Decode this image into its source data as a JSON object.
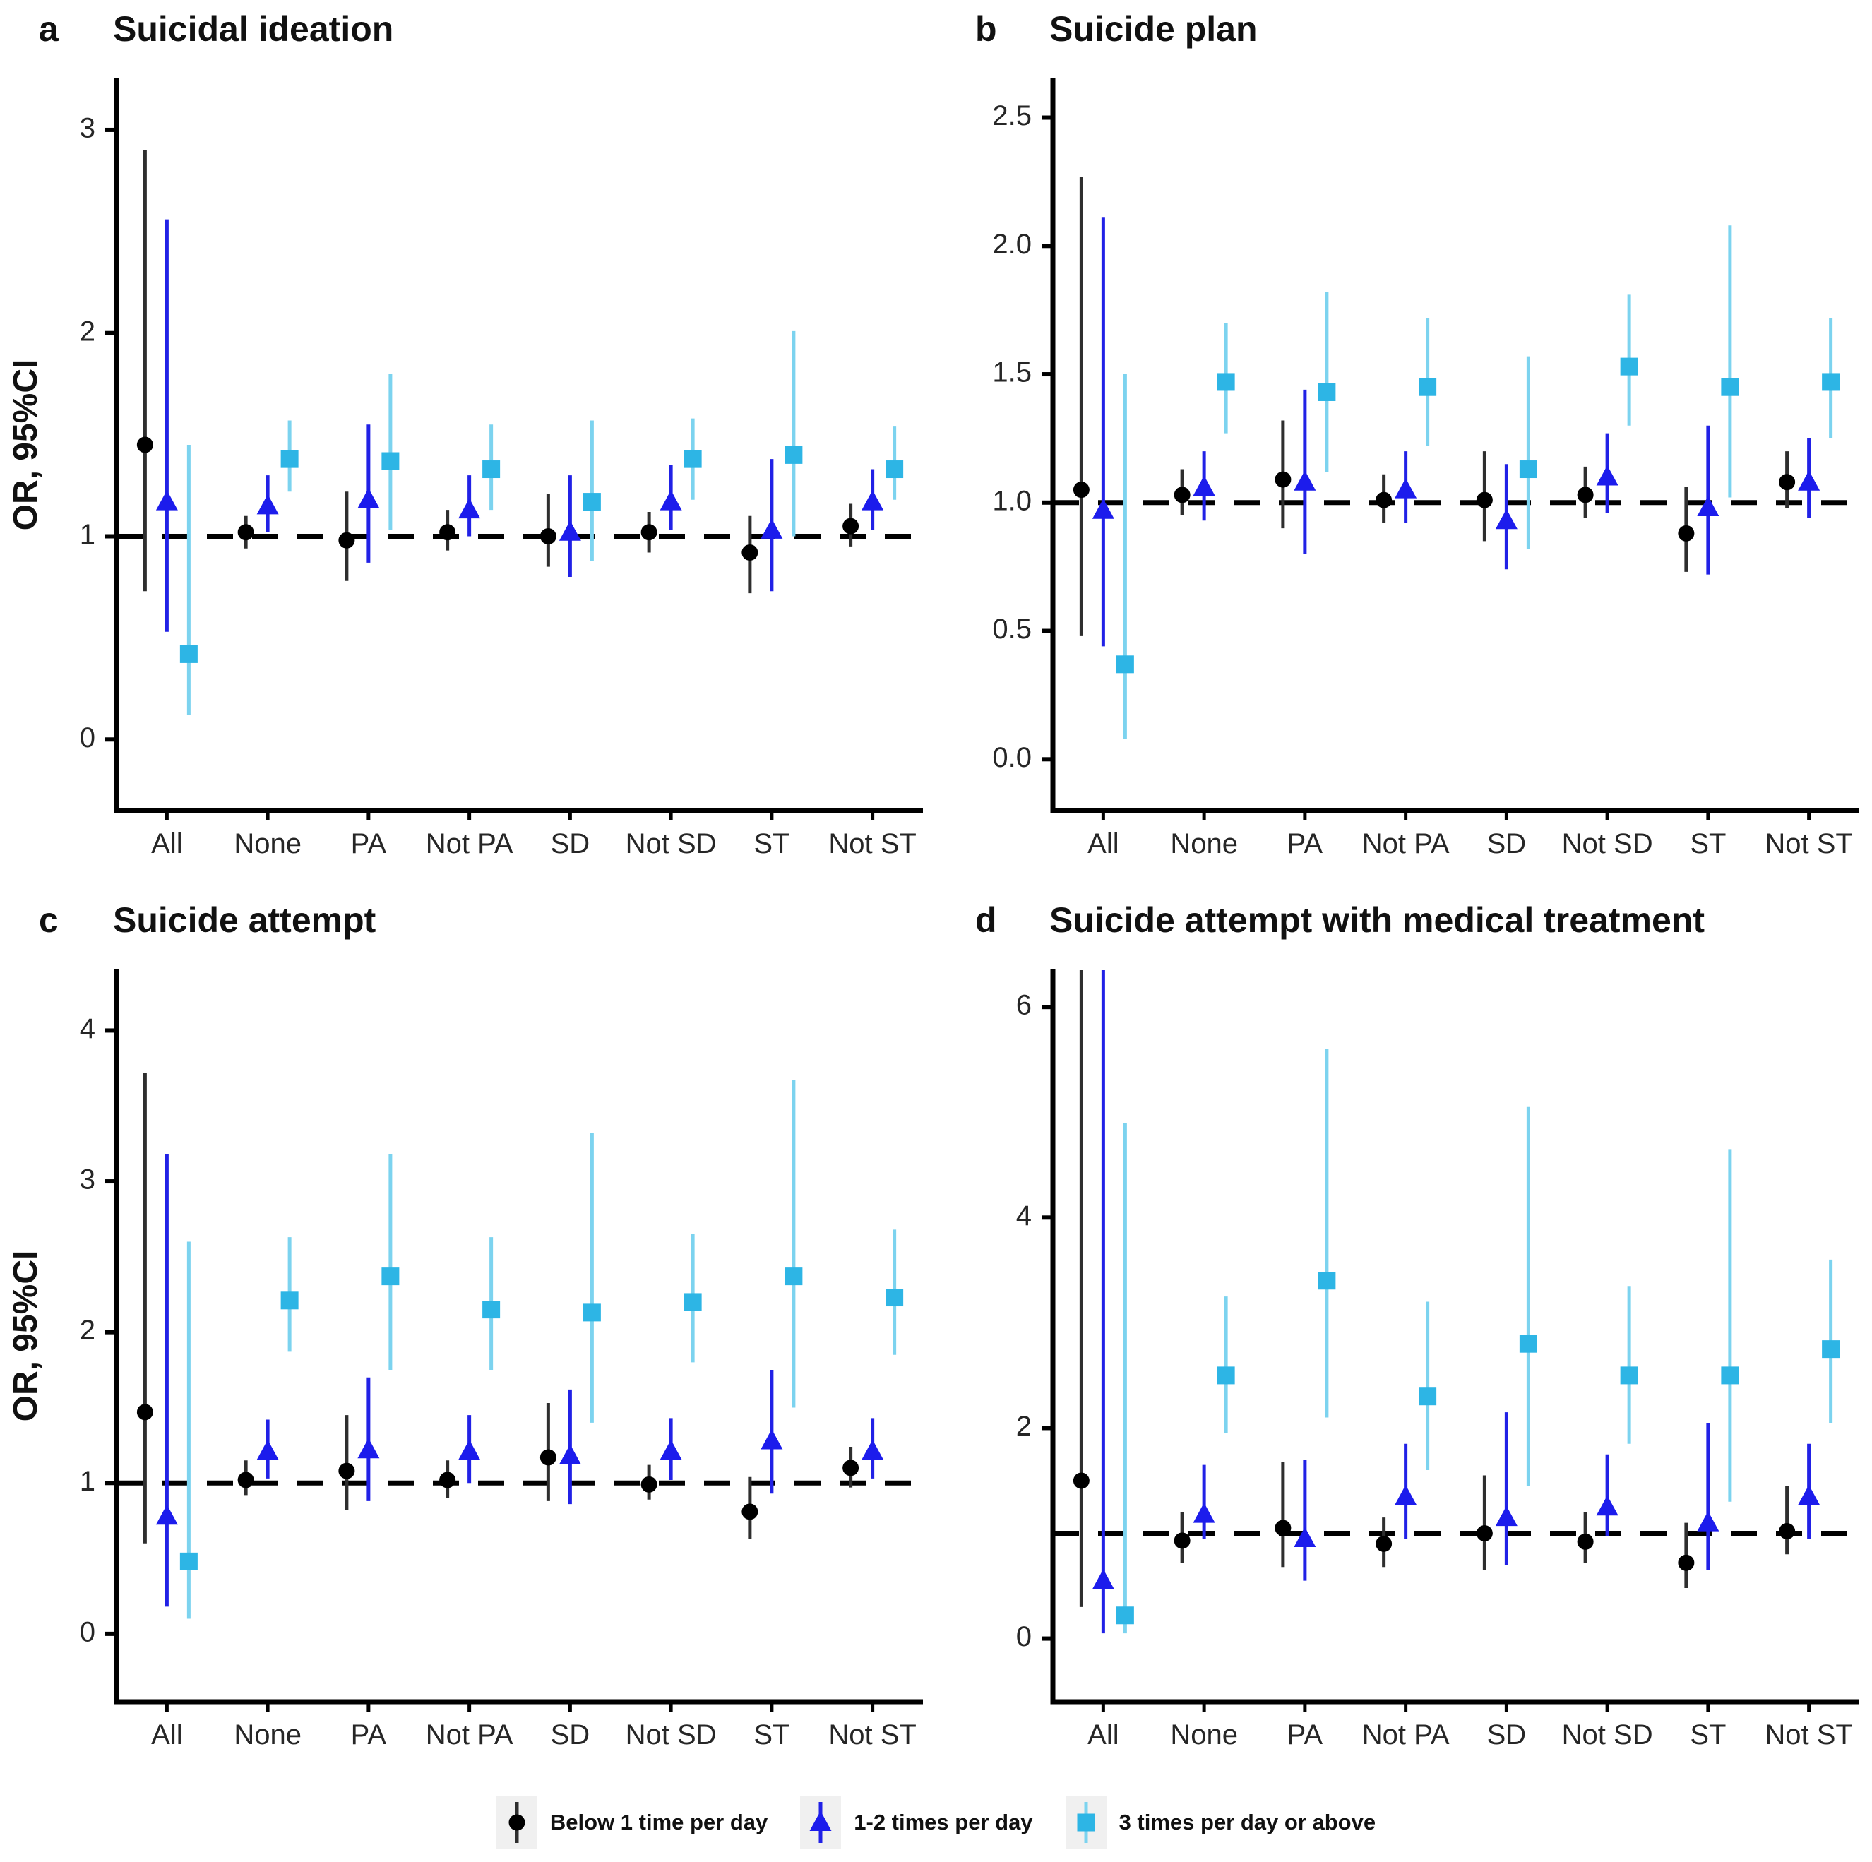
{
  "figure": {
    "ylabel": "OR, 95%CI",
    "background_color": "#ffffff",
    "reference_line_value": 1
  },
  "legend": {
    "items": [
      {
        "label": "Below 1 time per day",
        "marker": "circle",
        "marker_color": "#000000",
        "line_color": "#2e2e2e"
      },
      {
        "label": "1-2 times per day",
        "marker": "triangle",
        "marker_color": "#1c1cec",
        "line_color": "#2121e6"
      },
      {
        "label": "3 times per day or above",
        "marker": "square",
        "marker_color": "#2db5e5",
        "line_color": "#7cd3ef"
      }
    ]
  },
  "chart_data": [
    {
      "type": "pointrange",
      "panel_letter": "a",
      "title": "Suicidal ideation",
      "ylabel": "OR, 95%CI",
      "ylim": [
        -0.35,
        3.25
      ],
      "yticks": [
        0,
        1,
        2,
        3
      ],
      "ytick_labels": [
        "0",
        "1",
        "2",
        "3"
      ],
      "reference_line": 1,
      "categories": [
        "All",
        "None",
        "PA",
        "Not PA",
        "SD",
        "Not SD",
        "ST",
        "Not ST"
      ],
      "series": [
        {
          "name": "Below 1 time per day",
          "marker": "circle",
          "values": [
            1.45,
            1.02,
            0.98,
            1.02,
            1.0,
            1.02,
            0.92,
            1.05
          ],
          "lower": [
            0.73,
            0.94,
            0.78,
            0.93,
            0.85,
            0.92,
            0.72,
            0.95
          ],
          "upper": [
            2.9,
            1.1,
            1.22,
            1.13,
            1.21,
            1.12,
            1.1,
            1.16
          ]
        },
        {
          "name": "1-2 times per day",
          "marker": "triangle",
          "values": [
            1.17,
            1.15,
            1.18,
            1.13,
            1.02,
            1.17,
            1.03,
            1.17
          ],
          "lower": [
            0.53,
            1.02,
            0.87,
            1.0,
            0.8,
            1.03,
            0.73,
            1.03
          ],
          "upper": [
            2.56,
            1.3,
            1.55,
            1.3,
            1.3,
            1.35,
            1.38,
            1.33
          ]
        },
        {
          "name": "3 times per day or above",
          "marker": "square",
          "values": [
            0.42,
            1.38,
            1.37,
            1.33,
            1.17,
            1.38,
            1.4,
            1.33
          ],
          "lower": [
            0.12,
            1.22,
            1.03,
            1.13,
            0.88,
            1.18,
            1.0,
            1.18
          ],
          "upper": [
            1.45,
            1.57,
            1.8,
            1.55,
            1.57,
            1.58,
            2.01,
            1.54
          ]
        }
      ]
    },
    {
      "type": "pointrange",
      "panel_letter": "b",
      "title": "Suicide plan",
      "ylabel": "",
      "ylim": [
        -0.2,
        2.65
      ],
      "yticks": [
        0.0,
        0.5,
        1.0,
        1.5,
        2.0,
        2.5
      ],
      "ytick_labels": [
        "0.0",
        "0.5",
        "1.0",
        "1.5",
        "2.0",
        "2.5"
      ],
      "reference_line": 1,
      "categories": [
        "All",
        "None",
        "PA",
        "Not PA",
        "SD",
        "Not SD",
        "ST",
        "Not ST"
      ],
      "series": [
        {
          "name": "Below 1 time per day",
          "marker": "circle",
          "values": [
            1.05,
            1.03,
            1.09,
            1.01,
            1.01,
            1.03,
            0.88,
            1.08
          ],
          "lower": [
            0.48,
            0.95,
            0.9,
            0.92,
            0.85,
            0.94,
            0.73,
            0.98
          ],
          "upper": [
            2.27,
            1.13,
            1.32,
            1.11,
            1.2,
            1.14,
            1.06,
            1.2
          ]
        },
        {
          "name": "1-2 times per day",
          "marker": "triangle",
          "values": [
            0.97,
            1.06,
            1.08,
            1.05,
            0.93,
            1.1,
            0.98,
            1.08
          ],
          "lower": [
            0.44,
            0.93,
            0.8,
            0.92,
            0.74,
            0.96,
            0.72,
            0.94
          ],
          "upper": [
            2.11,
            1.2,
            1.44,
            1.2,
            1.15,
            1.27,
            1.3,
            1.25
          ]
        },
        {
          "name": "3 times per day or above",
          "marker": "square",
          "values": [
            0.37,
            1.47,
            1.43,
            1.45,
            1.13,
            1.53,
            1.45,
            1.47
          ],
          "lower": [
            0.08,
            1.27,
            1.12,
            1.22,
            0.82,
            1.3,
            1.02,
            1.25
          ],
          "upper": [
            1.5,
            1.7,
            1.82,
            1.72,
            1.57,
            1.81,
            2.08,
            1.72
          ]
        }
      ]
    },
    {
      "type": "pointrange",
      "panel_letter": "c",
      "title": "Suicide attempt",
      "ylabel": "OR, 95%CI",
      "ylim": [
        -0.45,
        4.4
      ],
      "yticks": [
        0,
        1,
        2,
        3,
        4
      ],
      "ytick_labels": [
        "0",
        "1",
        "2",
        "3",
        "4"
      ],
      "reference_line": 1,
      "categories": [
        "All",
        "None",
        "PA",
        "Not PA",
        "SD",
        "Not SD",
        "ST",
        "Not ST"
      ],
      "series": [
        {
          "name": "Below 1 time per day",
          "marker": "circle",
          "values": [
            1.47,
            1.02,
            1.08,
            1.02,
            1.17,
            0.99,
            0.81,
            1.1
          ],
          "lower": [
            0.6,
            0.92,
            0.82,
            0.9,
            0.88,
            0.89,
            0.63,
            0.97
          ],
          "upper": [
            3.72,
            1.15,
            1.45,
            1.15,
            1.53,
            1.12,
            1.04,
            1.24
          ]
        },
        {
          "name": "1-2 times per day",
          "marker": "triangle",
          "values": [
            0.78,
            1.21,
            1.22,
            1.21,
            1.18,
            1.21,
            1.28,
            1.21
          ],
          "lower": [
            0.18,
            1.03,
            0.88,
            1.0,
            0.86,
            1.02,
            0.93,
            1.03
          ],
          "upper": [
            3.18,
            1.42,
            1.7,
            1.45,
            1.62,
            1.43,
            1.75,
            1.43
          ]
        },
        {
          "name": "3 times per day or above",
          "marker": "square",
          "values": [
            0.48,
            2.21,
            2.37,
            2.15,
            2.13,
            2.2,
            2.37,
            2.23
          ],
          "lower": [
            0.1,
            1.87,
            1.75,
            1.75,
            1.4,
            1.8,
            1.5,
            1.85
          ],
          "upper": [
            2.6,
            2.63,
            3.18,
            2.63,
            3.32,
            2.65,
            3.67,
            2.68
          ]
        }
      ]
    },
    {
      "type": "pointrange",
      "panel_letter": "d",
      "title": "Suicide attempt with medical treatment",
      "ylabel": "",
      "ylim": [
        -0.6,
        6.35
      ],
      "yticks": [
        0,
        2,
        4,
        6
      ],
      "ytick_labels": [
        "0",
        "2",
        "4",
        "6"
      ],
      "reference_line": 1,
      "categories": [
        "All",
        "None",
        "PA",
        "Not PA",
        "SD",
        "Not SD",
        "ST",
        "Not ST"
      ],
      "series": [
        {
          "name": "Below 1 time per day",
          "marker": "circle",
          "values": [
            1.5,
            0.93,
            1.05,
            0.9,
            1.0,
            0.92,
            0.72,
            1.02
          ],
          "lower": [
            0.3,
            0.72,
            0.68,
            0.68,
            0.65,
            0.72,
            0.48,
            0.8
          ],
          "upper": [
            6.6,
            1.2,
            1.68,
            1.15,
            1.55,
            1.2,
            1.1,
            1.45
          ]
        },
        {
          "name": "1-2 times per day",
          "marker": "triangle",
          "values": [
            0.55,
            1.18,
            0.95,
            1.35,
            1.15,
            1.25,
            1.1,
            1.35
          ],
          "lower": [
            0.05,
            0.95,
            0.55,
            0.95,
            0.7,
            0.97,
            0.65,
            0.95
          ],
          "upper": [
            6.6,
            1.65,
            1.7,
            1.85,
            2.15,
            1.75,
            2.05,
            1.85
          ]
        },
        {
          "name": "3 times per day or above",
          "marker": "square",
          "values": [
            0.22,
            2.5,
            3.4,
            2.3,
            2.8,
            2.5,
            2.5,
            2.75
          ],
          "lower": [
            0.05,
            1.95,
            2.1,
            1.6,
            1.45,
            1.85,
            1.3,
            2.05
          ],
          "upper": [
            4.9,
            3.25,
            5.6,
            3.2,
            5.05,
            3.35,
            4.65,
            3.6
          ]
        }
      ]
    }
  ]
}
